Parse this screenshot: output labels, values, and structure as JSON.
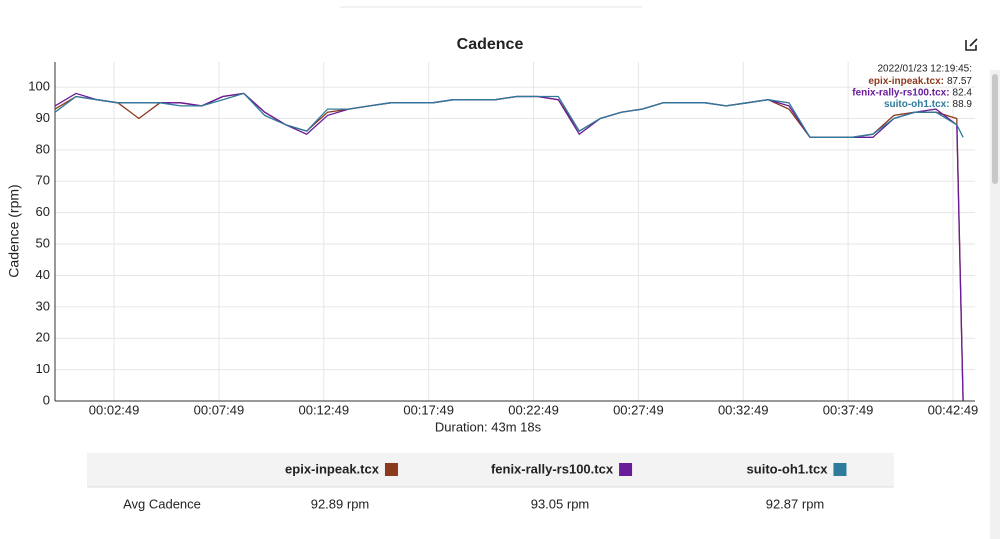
{
  "chart_data": {
    "type": "line",
    "title": "Cadence",
    "x_label": "Duration: 43m 18s",
    "y_label": "Cadence (rpm)",
    "x": [
      0,
      60,
      120,
      180,
      240,
      300,
      360,
      420,
      480,
      540,
      600,
      660,
      720,
      780,
      840,
      900,
      960,
      1020,
      1080,
      1140,
      1200,
      1260,
      1320,
      1380,
      1440,
      1500,
      1560,
      1620,
      1680,
      1740,
      1800,
      1860,
      1920,
      1980,
      2040,
      2100,
      2160,
      2220,
      2280,
      2340,
      2400,
      2460,
      2520,
      2580,
      2598
    ],
    "series": [
      {
        "name": "epix-inpeak.tcx",
        "color": "#8b3a1e",
        "values": [
          93,
          97,
          96,
          95,
          90,
          95,
          95,
          94,
          97,
          98,
          92,
          88,
          86,
          92,
          93,
          94,
          95,
          95,
          95,
          96,
          96,
          96,
          97,
          97,
          96,
          86,
          90,
          92,
          93,
          95,
          95,
          95,
          94,
          95,
          96,
          93,
          84,
          84,
          84,
          85,
          91,
          92,
          92,
          90,
          0
        ]
      },
      {
        "name": "fenix-rally-rs100.tcx",
        "color": "#6a1b9a",
        "values": [
          94,
          98,
          96,
          95,
          95,
          95,
          95,
          94,
          97,
          98,
          92,
          88,
          85,
          91,
          93,
          94,
          95,
          95,
          95,
          96,
          96,
          96,
          97,
          97,
          96,
          85,
          90,
          92,
          93,
          95,
          95,
          95,
          94,
          95,
          96,
          94,
          84,
          84,
          84,
          84,
          90,
          92,
          93,
          88,
          0
        ]
      },
      {
        "name": "suito-oh1.tcx",
        "color": "#2e7b9c",
        "values": [
          92,
          97,
          96,
          95,
          95,
          95,
          94,
          94,
          96,
          98,
          91,
          88,
          86,
          93,
          93,
          94,
          95,
          95,
          95,
          96,
          96,
          96,
          97,
          97,
          97,
          86,
          90,
          92,
          93,
          95,
          95,
          95,
          94,
          95,
          96,
          95,
          84,
          84,
          84,
          85,
          90,
          92,
          92,
          88,
          84
        ]
      }
    ],
    "xlim": [
      0,
      2632
    ],
    "xticks": [
      {
        "value": 169,
        "label": "00:02:49"
      },
      {
        "value": 469,
        "label": "00:07:49"
      },
      {
        "value": 769,
        "label": "00:12:49"
      },
      {
        "value": 1069,
        "label": "00:17:49"
      },
      {
        "value": 1369,
        "label": "00:22:49"
      },
      {
        "value": 1669,
        "label": "00:27:49"
      },
      {
        "value": 1969,
        "label": "00:32:49"
      },
      {
        "value": 2269,
        "label": "00:37:49"
      },
      {
        "value": 2569,
        "label": "00:42:49"
      }
    ],
    "ylim": [
      0,
      108
    ],
    "yticks": [
      0,
      10,
      20,
      30,
      40,
      50,
      60,
      70,
      80,
      90,
      100
    ],
    "grid": true,
    "tooltip": {
      "time": "2022/01/23 12:19:45:",
      "entries": [
        {
          "label": "epix-inpeak.tcx:",
          "value": 87.57
        },
        {
          "label": "fenix-rally-rs100.tcx:",
          "value": 82.4
        },
        {
          "label": "suito-oh1.tcx:",
          "value": 88.9
        }
      ]
    }
  },
  "table": {
    "columns": [
      "epix-inpeak.tcx",
      "fenix-rally-rs100.tcx",
      "suito-oh1.tcx"
    ],
    "rows": [
      [
        "Avg Cadence",
        "92.89 rpm",
        "93.05 rpm",
        "92.87 rpm"
      ]
    ]
  }
}
